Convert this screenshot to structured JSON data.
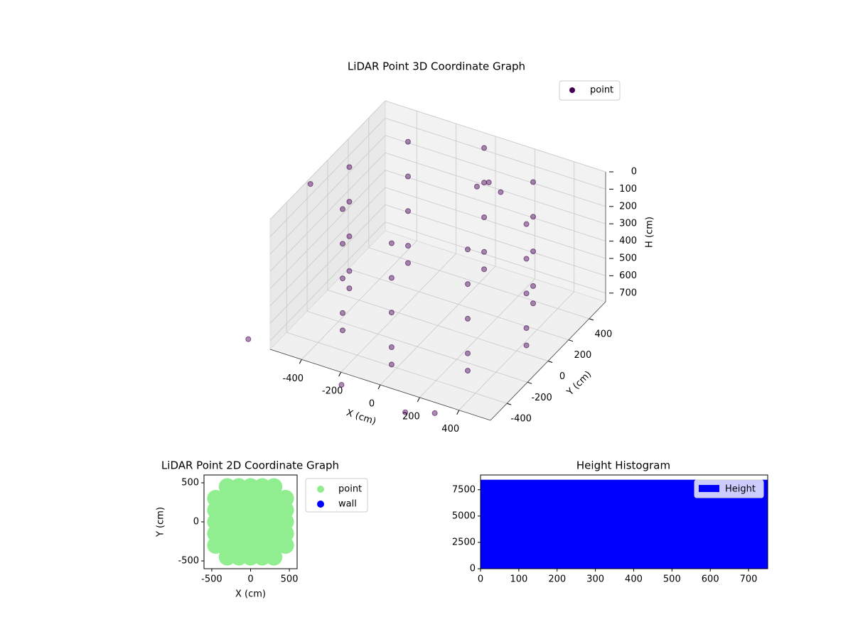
{
  "chart_data": [
    {
      "type": "scatter3d",
      "title": "LiDAR Point 3D Coordinate Graph",
      "xlabel": "X (cm)",
      "ylabel": "Y (cm)",
      "zlabel": "H (cm)",
      "xlim": [
        -560,
        560
      ],
      "ylim": [
        -560,
        560
      ],
      "zlim": [
        0,
        750
      ],
      "z_inverted": true,
      "xticks": [
        -400,
        -200,
        0,
        200,
        400
      ],
      "yticks": [
        -400,
        -200,
        0,
        200,
        400
      ],
      "zticks": [
        0,
        100,
        200,
        300,
        400,
        500,
        600,
        700
      ],
      "legend": "upper right",
      "grid": true,
      "series": [
        {
          "name": "point",
          "color": "#440154",
          "x": [
            450,
            318,
            0,
            -318,
            -450,
            -318,
            0,
            318,
            450,
            318,
            0,
            -318,
            -450,
            -318,
            0,
            318,
            450,
            318,
            0,
            -318,
            -450,
            -318,
            0,
            318,
            450,
            318,
            0,
            -318,
            -450,
            -318,
            0,
            318,
            450,
            318,
            0,
            -318,
            -450,
            -318,
            0,
            318,
            50,
            100,
            0,
            -700,
            -650,
            -150,
            200,
            350
          ],
          "y": [
            0,
            318,
            450,
            318,
            0,
            -318,
            -450,
            -318,
            0,
            318,
            450,
            318,
            0,
            -318,
            -450,
            -318,
            0,
            318,
            450,
            318,
            0,
            -318,
            -450,
            -318,
            0,
            318,
            450,
            318,
            0,
            -318,
            -450,
            -318,
            0,
            318,
            450,
            318,
            0,
            -318,
            -450,
            -318,
            400,
            420,
            380,
            100,
            -600,
            -650,
            -700,
            -700
          ],
          "h": [
            0,
            0,
            0,
            0,
            0,
            0,
            0,
            0,
            200,
            200,
            200,
            200,
            200,
            200,
            200,
            200,
            400,
            400,
            400,
            400,
            400,
            400,
            400,
            400,
            600,
            600,
            600,
            600,
            600,
            600,
            600,
            600,
            700,
            700,
            700,
            700,
            700,
            700,
            700,
            700,
            150,
            200,
            180,
            250,
            700,
            750,
            750,
            700
          ]
        }
      ]
    },
    {
      "type": "scatter",
      "title": "LiDAR Point 2D Coordinate Graph",
      "xlabel": "X (cm)",
      "ylabel": "Y (cm)",
      "xlim": [
        -600,
        600
      ],
      "ylim": [
        -600,
        600
      ],
      "xticks": [
        -500,
        0,
        500
      ],
      "yticks": [
        -500,
        0,
        500
      ],
      "legend": "outside right",
      "series": [
        {
          "name": "point",
          "color": "#90ee90",
          "x": [
            -300,
            -150,
            0,
            150,
            300,
            -450,
            -300,
            -150,
            0,
            150,
            300,
            450,
            -450,
            -300,
            -150,
            0,
            150,
            300,
            450,
            -450,
            -300,
            -150,
            0,
            150,
            300,
            450,
            -450,
            -300,
            -150,
            0,
            150,
            300,
            450,
            -450,
            -300,
            -150,
            0,
            150,
            300,
            450,
            -300,
            -150,
            0,
            150,
            300
          ],
          "y": [
            -450,
            -450,
            -450,
            -450,
            -450,
            -300,
            -300,
            -300,
            -300,
            -300,
            -300,
            -300,
            -150,
            -150,
            -150,
            -150,
            -150,
            -150,
            -150,
            0,
            0,
            0,
            0,
            0,
            0,
            0,
            150,
            150,
            150,
            150,
            150,
            150,
            150,
            300,
            300,
            300,
            300,
            300,
            300,
            300,
            450,
            450,
            450,
            450,
            450
          ]
        },
        {
          "name": "wall",
          "color": "#0000ff",
          "x": [],
          "y": []
        }
      ]
    },
    {
      "type": "histogram",
      "title": "Height Histogram",
      "xlim": [
        0,
        750
      ],
      "ylim": [
        0,
        8900
      ],
      "xticks": [
        0,
        100,
        200,
        300,
        400,
        500,
        600,
        700
      ],
      "yticks": [
        0,
        2500,
        5000,
        7500
      ],
      "legend": "upper right",
      "series": [
        {
          "name": "Height",
          "color": "#0000ff",
          "bins": [
            0,
            750
          ],
          "counts": [
            8450
          ]
        }
      ]
    }
  ]
}
